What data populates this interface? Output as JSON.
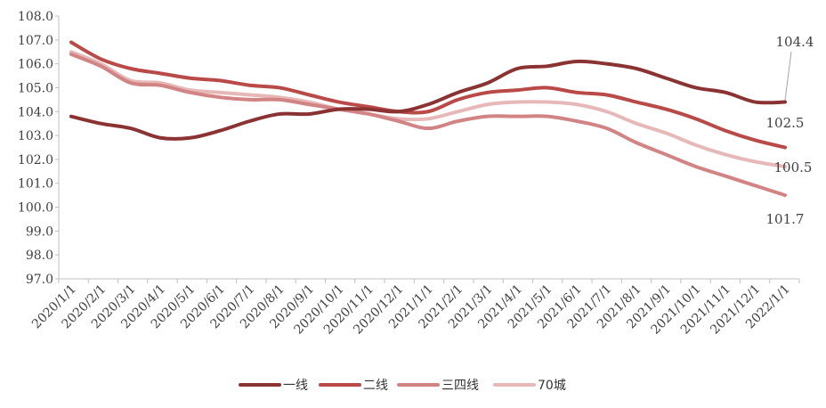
{
  "chart_data": {
    "type": "line",
    "title": "",
    "xlabel": "",
    "ylabel": "",
    "ylim": [
      97.0,
      108.0
    ],
    "yticks": [
      "97.0",
      "98.0",
      "99.0",
      "100.0",
      "101.0",
      "102.0",
      "103.0",
      "104.0",
      "105.0",
      "106.0",
      "107.0",
      "108.0"
    ],
    "categories": [
      "2020/1/1",
      "2020/2/1",
      "2020/3/1",
      "2020/4/1",
      "2020/5/1",
      "2020/6/1",
      "2020/7/1",
      "2020/8/1",
      "2020/9/1",
      "2020/10/1",
      "2020/11/1",
      "2020/12/1",
      "2021/1/1",
      "2021/2/1",
      "2021/3/1",
      "2021/4/1",
      "2021/5/1",
      "2021/6/1",
      "2021/7/1",
      "2021/8/1",
      "2021/9/1",
      "2021/10/1",
      "2021/11/1",
      "2021/12/1",
      "2022/1/1"
    ],
    "grid": false,
    "legend_position": "bottom",
    "series": [
      {
        "name": "一线",
        "color": "#8b3232",
        "values": [
          103.8,
          103.5,
          103.3,
          102.9,
          102.9,
          103.2,
          103.6,
          103.9,
          103.9,
          104.1,
          104.1,
          104.0,
          104.3,
          104.8,
          105.2,
          105.8,
          105.9,
          106.1,
          106.0,
          105.8,
          105.4,
          105.0,
          104.8,
          104.4,
          104.4
        ],
        "end_label": "104.4"
      },
      {
        "name": "二线",
        "color": "#b94a48",
        "values": [
          106.9,
          106.2,
          105.8,
          105.6,
          105.4,
          105.3,
          105.1,
          105.0,
          104.7,
          104.4,
          104.2,
          104.0,
          104.0,
          104.5,
          104.8,
          104.9,
          105.0,
          104.8,
          104.7,
          104.4,
          104.1,
          103.7,
          103.2,
          102.8,
          102.5
        ],
        "end_label": "102.5"
      },
      {
        "name": "三四线",
        "color": "#d28383",
        "values": [
          106.4,
          105.9,
          105.2,
          105.1,
          104.8,
          104.6,
          104.5,
          104.5,
          104.3,
          104.1,
          103.9,
          103.6,
          103.3,
          103.6,
          103.8,
          103.8,
          103.8,
          103.6,
          103.3,
          102.7,
          102.2,
          101.7,
          101.3,
          100.9,
          100.5
        ],
        "end_label": "100.5"
      },
      {
        "name": "70城",
        "color": "#e6b8b7",
        "values": [
          106.5,
          106.0,
          105.3,
          105.2,
          104.9,
          104.8,
          104.7,
          104.6,
          104.4,
          104.1,
          103.9,
          103.7,
          103.7,
          104.0,
          104.3,
          104.4,
          104.4,
          104.3,
          104.0,
          103.5,
          103.1,
          102.6,
          102.2,
          101.9,
          101.7
        ],
        "end_label": "101.7"
      }
    ]
  }
}
